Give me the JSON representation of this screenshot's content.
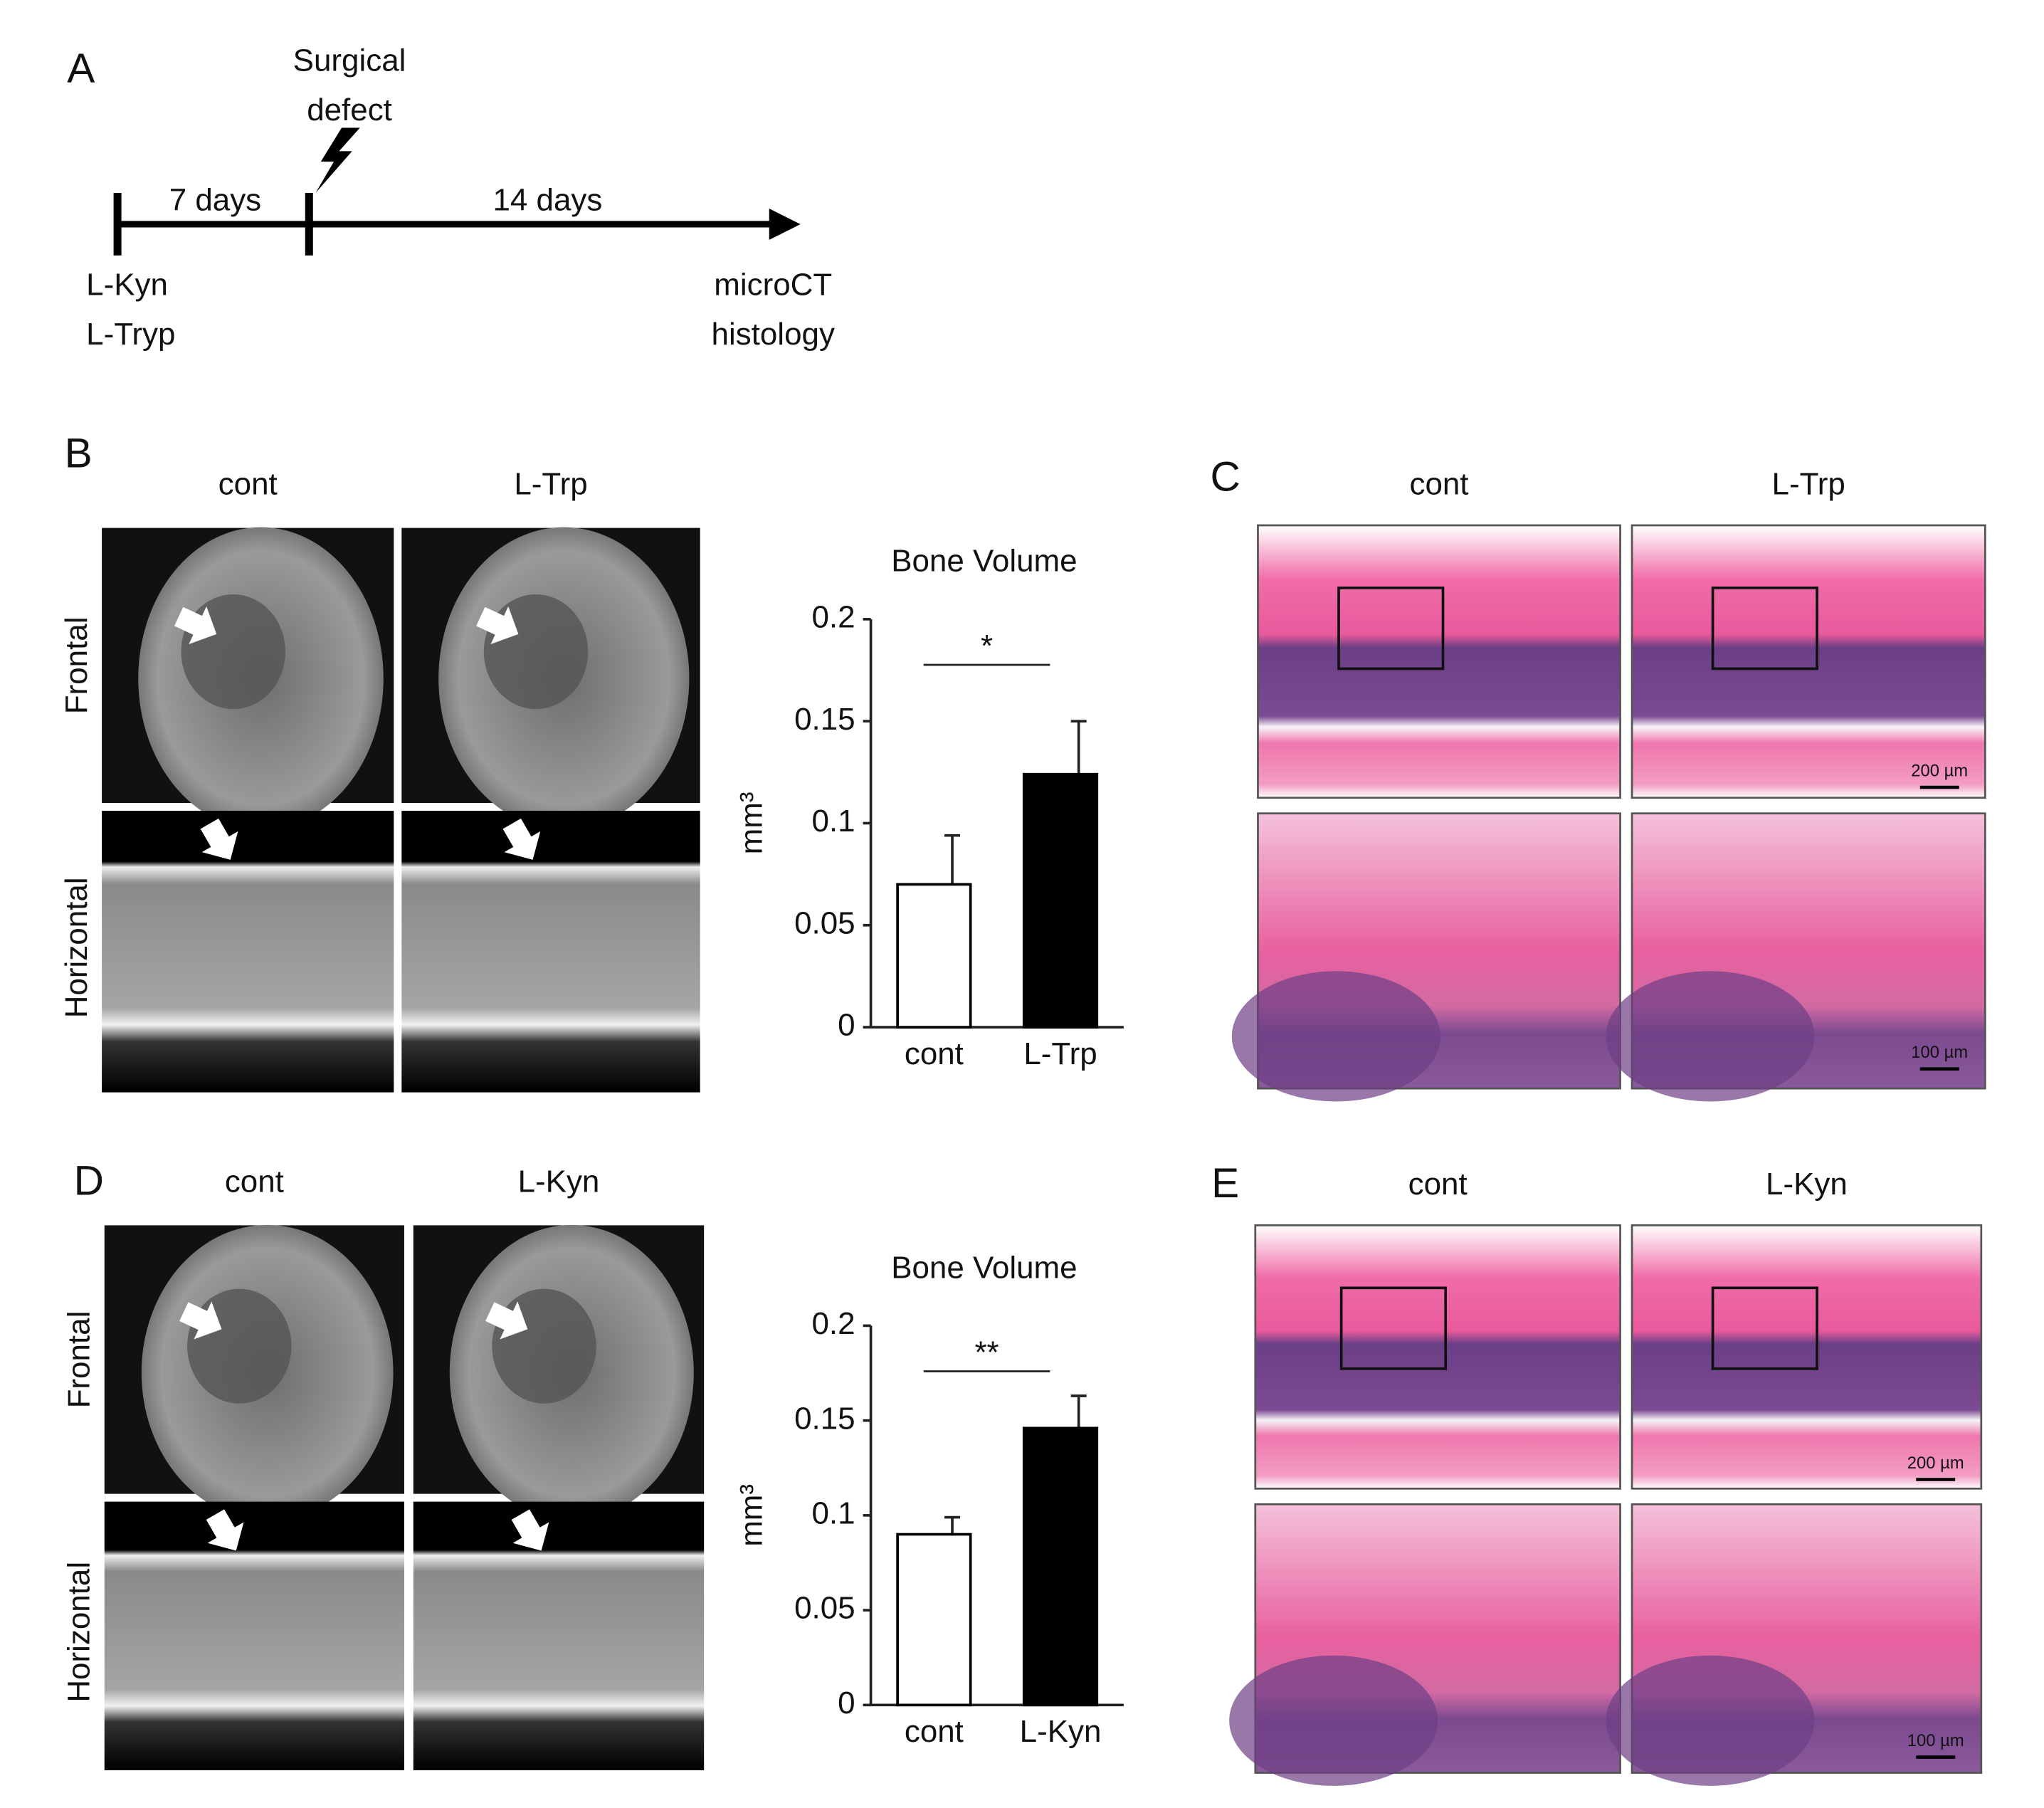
{
  "panel_labels": [
    "A",
    "B",
    "C",
    "D",
    "E"
  ],
  "timeline": {
    "event": [
      "Surgical",
      "defect"
    ],
    "interval_1": "7 days",
    "interval_2": "14 days",
    "start": [
      "L-Kyn",
      "L-Tryp"
    ],
    "end": [
      "microCT",
      "histology"
    ]
  },
  "microct": [
    {
      "columns": [
        "cont",
        "L-Trp"
      ],
      "rows": [
        "Frontal",
        "Horizontal"
      ]
    },
    {
      "columns": [
        "cont",
        "L-Kyn"
      ],
      "rows": [
        "Frontal",
        "Horizontal"
      ]
    }
  ],
  "histology": [
    {
      "columns": [
        "cont",
        "L-Trp"
      ],
      "scale_bars": [
        "200 µm",
        "100 µm"
      ]
    },
    {
      "columns": [
        "cont",
        "L-Kyn"
      ],
      "scale_bars": [
        "200 µm",
        "100 µm"
      ]
    }
  ],
  "chart_data": [
    {
      "type": "bar",
      "title": "Bone Volume",
      "y_label": "mm³",
      "categories": [
        "cont",
        "L-Trp"
      ],
      "values": [
        0.07,
        0.124
      ],
      "errors": [
        0.024,
        0.026
      ],
      "colors": [
        "#ffffff",
        "#000000"
      ],
      "ylim": [
        0,
        0.2
      ],
      "yticks": [
        0,
        0.05,
        0.1,
        0.15,
        0.2
      ],
      "significance": "*"
    },
    {
      "type": "bar",
      "title": "Bone Volume",
      "y_label": "mm³",
      "categories": [
        "cont",
        "L-Kyn"
      ],
      "values": [
        0.09,
        0.146
      ],
      "errors": [
        0.009,
        0.017
      ],
      "colors": [
        "#ffffff",
        "#000000"
      ],
      "ylim": [
        0,
        0.2
      ],
      "yticks": [
        0,
        0.05,
        0.1,
        0.15,
        0.2
      ],
      "significance": "**"
    }
  ]
}
